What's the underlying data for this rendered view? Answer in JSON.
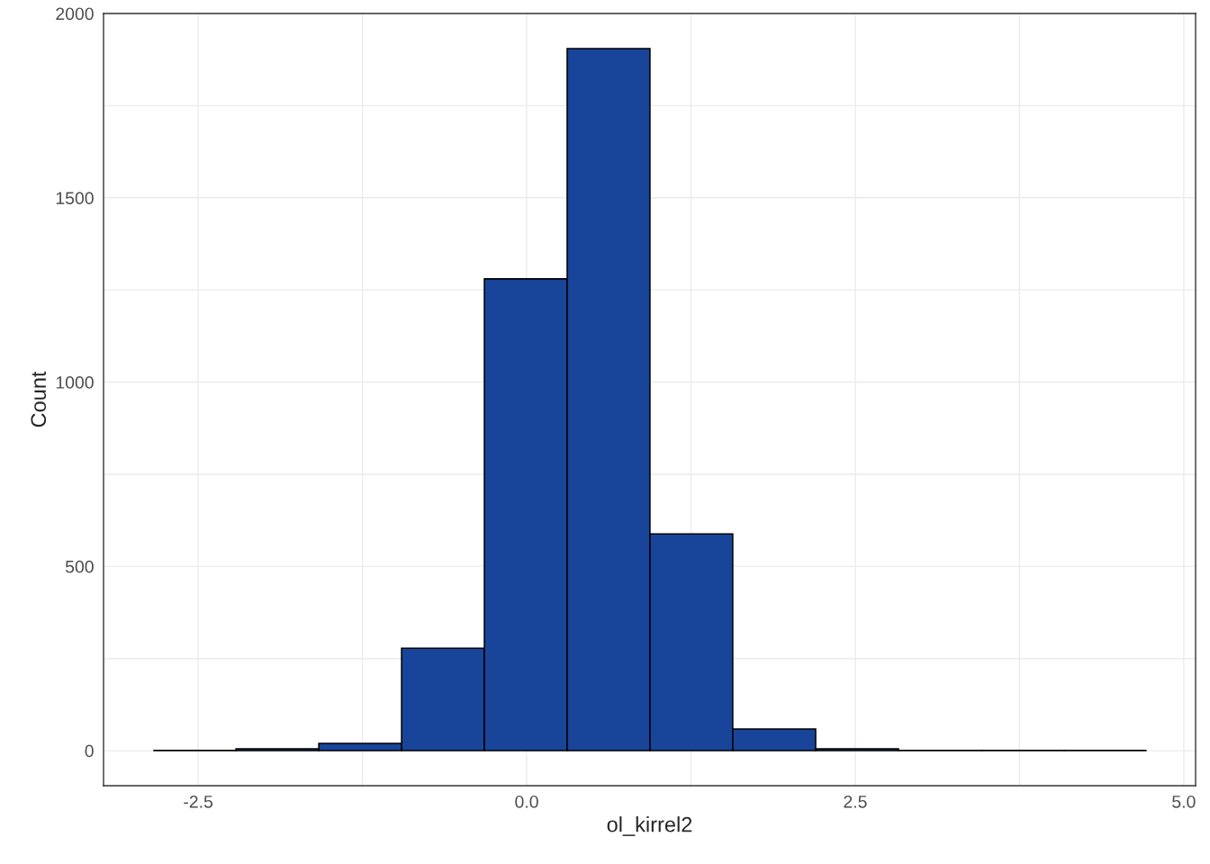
{
  "chart_data": {
    "type": "histogram",
    "xlabel": "ol_kirrel2",
    "ylabel": "Count",
    "color": "#18449a",
    "bins": [
      -2.836,
      -2.212,
      -1.582,
      -0.952,
      -0.322,
      0.308,
      0.938,
      1.568,
      2.199,
      2.829,
      3.459,
      4.089,
      4.712
    ],
    "values": [
      1,
      5,
      20,
      278,
      1280,
      1905,
      588,
      59,
      5,
      1,
      1,
      1
    ],
    "xlim": [
      -3.22,
      5.09
    ],
    "ylim": [
      -95,
      2000
    ],
    "xticks": [
      {
        "value": -2.5,
        "label": "-2.5"
      },
      {
        "value": 0,
        "label": "0.0"
      },
      {
        "value": 2.5,
        "label": "2.5"
      },
      {
        "value": 5,
        "label": "5.0"
      }
    ],
    "yticks": [
      0,
      500,
      1000,
      1500,
      2000
    ],
    "grid": true
  }
}
